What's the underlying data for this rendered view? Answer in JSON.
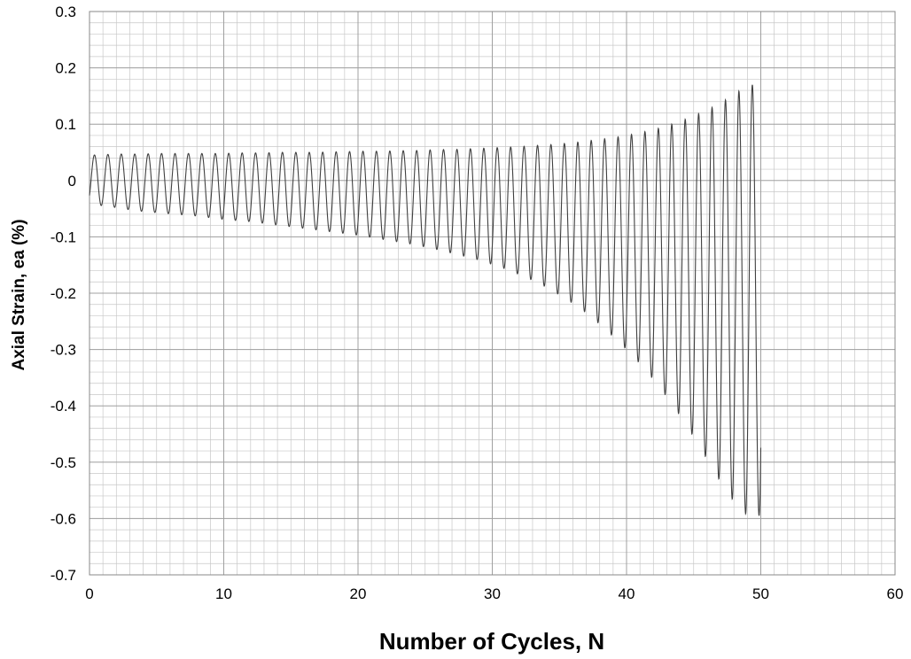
{
  "chart_data": {
    "type": "line",
    "title": "",
    "xlabel": "Number of Cycles, N",
    "ylabel": "Axial Strain, ea (%)",
    "xlim": [
      0,
      60
    ],
    "ylim": [
      -0.7,
      0.3
    ],
    "x_major_ticks": [
      0,
      10,
      20,
      30,
      40,
      50,
      60
    ],
    "y_major_ticks": [
      -0.7,
      -0.6,
      -0.5,
      -0.4,
      -0.3,
      -0.2,
      -0.1,
      0,
      0.1,
      0.2,
      0.3
    ],
    "x_tick_labels": [
      "0",
      "10",
      "20",
      "30",
      "40",
      "50",
      "60"
    ],
    "y_tick_labels": [
      "-0.7",
      "-0.6",
      "-0.5",
      "-0.4",
      "-0.3",
      "-0.2",
      "-0.1",
      "0",
      "0.1",
      "0.2",
      "0.3"
    ],
    "x_minor_step": 1,
    "y_minor_step": 0.02,
    "grid": true,
    "legend": "none",
    "line_color": "#404040",
    "grid_color": "#a0a0a0",
    "series": [
      {
        "cycles": [
          0,
          1,
          2,
          3,
          4,
          5,
          6,
          7,
          8,
          9,
          10,
          11,
          12,
          13,
          14,
          15,
          16,
          17,
          18,
          19,
          20,
          21,
          22,
          23,
          24,
          25,
          26,
          27,
          28,
          29,
          30,
          31,
          32,
          33,
          34,
          35,
          36,
          37,
          38,
          39,
          40,
          41,
          42,
          43,
          44,
          45,
          46,
          47,
          48,
          49
        ],
        "peak_max": [
          0.045,
          0.046,
          0.047,
          0.047,
          0.047,
          0.048,
          0.048,
          0.048,
          0.048,
          0.048,
          0.048,
          0.049,
          0.049,
          0.049,
          0.05,
          0.05,
          0.05,
          0.05,
          0.051,
          0.051,
          0.052,
          0.052,
          0.052,
          0.053,
          0.053,
          0.054,
          0.055,
          0.055,
          0.056,
          0.057,
          0.058,
          0.059,
          0.06,
          0.062,
          0.063,
          0.065,
          0.067,
          0.07,
          0.073,
          0.076,
          0.08,
          0.085,
          0.09,
          0.097,
          0.105,
          0.115,
          0.125,
          0.138,
          0.152,
          0.17
        ],
        "peak_min": [
          -0.04,
          -0.045,
          -0.048,
          -0.052,
          -0.055,
          -0.057,
          -0.059,
          -0.061,
          -0.063,
          -0.066,
          -0.069,
          -0.071,
          -0.073,
          -0.076,
          -0.079,
          -0.082,
          -0.085,
          -0.088,
          -0.091,
          -0.094,
          -0.097,
          -0.101,
          -0.105,
          -0.109,
          -0.113,
          -0.118,
          -0.123,
          -0.129,
          -0.135,
          -0.141,
          -0.149,
          -0.157,
          -0.167,
          -0.177,
          -0.189,
          -0.203,
          -0.218,
          -0.235,
          -0.255,
          -0.277,
          -0.3,
          -0.325,
          -0.353,
          -0.384,
          -0.418,
          -0.455,
          -0.495,
          -0.535,
          -0.57,
          -0.595
        ]
      }
    ]
  }
}
